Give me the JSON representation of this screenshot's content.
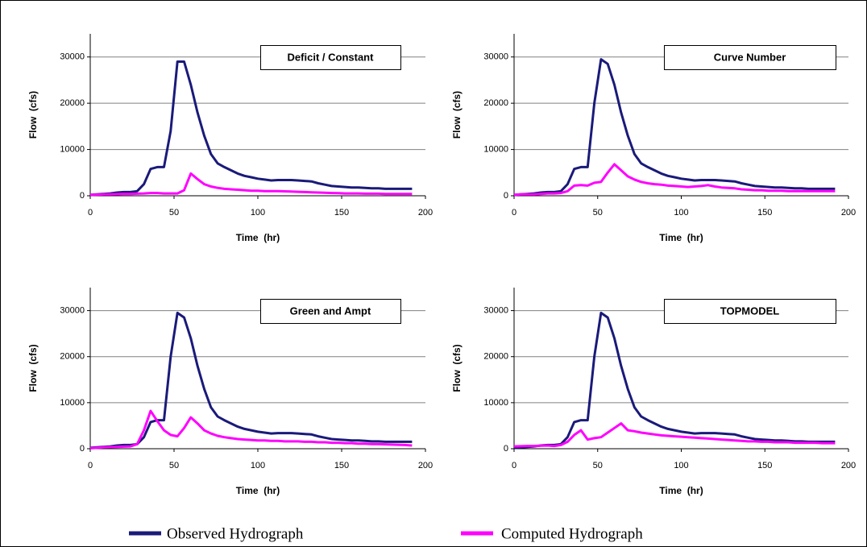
{
  "chart_data": [
    {
      "type": "line",
      "title": "Deficit / Constant",
      "xlabel": "Time  (hr)",
      "ylabel": "Flow  (cfs)",
      "x": [
        0,
        4,
        8,
        12,
        16,
        20,
        24,
        28,
        32,
        36,
        40,
        44,
        48,
        52,
        56,
        60,
        64,
        68,
        72,
        76,
        80,
        84,
        88,
        92,
        96,
        100,
        104,
        108,
        112,
        116,
        120,
        124,
        128,
        132,
        136,
        140,
        144,
        148,
        152,
        156,
        160,
        164,
        168,
        172,
        176,
        180,
        184,
        188,
        192
      ],
      "series": [
        {
          "name": "Observed Hydrograph",
          "color": "#1a1a7a",
          "values": [
            200,
            300,
            400,
            500,
            700,
            800,
            800,
            1000,
            2500,
            5800,
            6200,
            6200,
            14000,
            29000,
            29000,
            24000,
            18000,
            13000,
            9000,
            7000,
            6200,
            5500,
            4800,
            4300,
            4000,
            3700,
            3500,
            3300,
            3400,
            3400,
            3400,
            3300,
            3200,
            3100,
            2700,
            2400,
            2100,
            2000,
            1900,
            1800,
            1800,
            1700,
            1600,
            1600,
            1500,
            1500,
            1500,
            1500,
            1500
          ]
        },
        {
          "name": "Computed Hydrograph",
          "color": "#ff00ff",
          "values": [
            200,
            250,
            300,
            300,
            350,
            400,
            400,
            450,
            500,
            600,
            600,
            500,
            500,
            500,
            1200,
            4800,
            3600,
            2500,
            2000,
            1700,
            1500,
            1400,
            1300,
            1200,
            1100,
            1100,
            1000,
            1000,
            1000,
            950,
            900,
            850,
            800,
            750,
            700,
            650,
            600,
            550,
            500,
            500,
            500,
            450,
            450,
            450,
            400,
            400,
            400,
            400,
            400
          ]
        }
      ],
      "xlim": [
        0,
        200
      ],
      "xticks": [
        0,
        50,
        100,
        150,
        200
      ],
      "ylim": [
        0,
        35000
      ],
      "yticks": [
        0,
        10000,
        20000,
        30000
      ],
      "grid": true
    },
    {
      "type": "line",
      "title": "Curve Number",
      "xlabel": "Time  (hr)",
      "ylabel": "Flow  (cfs)",
      "x": [
        0,
        4,
        8,
        12,
        16,
        20,
        24,
        28,
        32,
        36,
        40,
        44,
        48,
        52,
        56,
        60,
        64,
        68,
        72,
        76,
        80,
        84,
        88,
        92,
        96,
        100,
        104,
        108,
        112,
        116,
        120,
        124,
        128,
        132,
        136,
        140,
        144,
        148,
        152,
        156,
        160,
        164,
        168,
        172,
        176,
        180,
        184,
        188,
        192
      ],
      "series": [
        {
          "color": "#1a1a7a",
          "values": [
            200,
            300,
            400,
            500,
            700,
            800,
            800,
            1000,
            2500,
            5800,
            6200,
            6200,
            20000,
            29500,
            28500,
            24000,
            18000,
            13000,
            9000,
            7000,
            6200,
            5500,
            4800,
            4300,
            4000,
            3700,
            3500,
            3300,
            3400,
            3400,
            3400,
            3300,
            3200,
            3100,
            2700,
            2400,
            2100,
            2000,
            1900,
            1800,
            1800,
            1700,
            1600,
            1600,
            1500,
            1500,
            1500,
            1500,
            1500
          ]
        },
        {
          "color": "#ff00ff",
          "values": [
            200,
            300,
            300,
            300,
            400,
            500,
            500,
            600,
            1000,
            2200,
            2300,
            2200,
            2800,
            3000,
            5000,
            6800,
            5500,
            4200,
            3500,
            3000,
            2700,
            2500,
            2400,
            2200,
            2100,
            2000,
            1900,
            2000,
            2100,
            2300,
            2000,
            1800,
            1700,
            1600,
            1400,
            1300,
            1200,
            1200,
            1100,
            1100,
            1100,
            1000,
            1000,
            1000,
            1000,
            1000,
            1000,
            1000,
            1000
          ]
        }
      ],
      "xlim": [
        0,
        200
      ],
      "xticks": [
        0,
        50,
        100,
        150,
        200
      ],
      "ylim": [
        0,
        35000
      ],
      "yticks": [
        0,
        10000,
        20000,
        30000
      ],
      "grid": true
    },
    {
      "type": "line",
      "title": "Green and Ampt",
      "xlabel": "Time  (hr)",
      "ylabel": "Flow  (cfs)",
      "x": [
        0,
        4,
        8,
        12,
        16,
        20,
        24,
        28,
        32,
        36,
        40,
        44,
        48,
        52,
        56,
        60,
        64,
        68,
        72,
        76,
        80,
        84,
        88,
        92,
        96,
        100,
        104,
        108,
        112,
        116,
        120,
        124,
        128,
        132,
        136,
        140,
        144,
        148,
        152,
        156,
        160,
        164,
        168,
        172,
        176,
        180,
        184,
        188,
        192
      ],
      "series": [
        {
          "color": "#1a1a7a",
          "values": [
            200,
            300,
            400,
            500,
            700,
            800,
            800,
            1000,
            2500,
            5800,
            6200,
            6200,
            20000,
            29500,
            28500,
            24000,
            18000,
            13000,
            9000,
            7000,
            6200,
            5500,
            4800,
            4300,
            4000,
            3700,
            3500,
            3300,
            3400,
            3400,
            3400,
            3300,
            3200,
            3100,
            2700,
            2400,
            2100,
            2000,
            1900,
            1800,
            1800,
            1700,
            1600,
            1600,
            1500,
            1500,
            1500,
            1500,
            1500
          ]
        },
        {
          "color": "#ff00ff",
          "values": [
            100,
            200,
            300,
            350,
            400,
            450,
            500,
            1000,
            4000,
            8200,
            6000,
            4000,
            3000,
            2700,
            4500,
            6800,
            5500,
            4000,
            3300,
            2800,
            2500,
            2300,
            2100,
            2000,
            1900,
            1800,
            1800,
            1700,
            1700,
            1600,
            1600,
            1600,
            1500,
            1500,
            1400,
            1400,
            1300,
            1300,
            1200,
            1200,
            1100,
            1100,
            1000,
            1000,
            950,
            900,
            850,
            800,
            700
          ]
        }
      ],
      "xlim": [
        0,
        200
      ],
      "xticks": [
        0,
        50,
        100,
        150,
        200
      ],
      "ylim": [
        0,
        35000
      ],
      "yticks": [
        0,
        10000,
        20000,
        30000
      ],
      "grid": true
    },
    {
      "type": "line",
      "title": "TOPMODEL",
      "xlabel": "Time  (hr)",
      "ylabel": "Flow  (cfs)",
      "x": [
        0,
        4,
        8,
        12,
        16,
        20,
        24,
        28,
        32,
        36,
        40,
        44,
        48,
        52,
        56,
        60,
        64,
        68,
        72,
        76,
        80,
        84,
        88,
        92,
        96,
        100,
        104,
        108,
        112,
        116,
        120,
        124,
        128,
        132,
        136,
        140,
        144,
        148,
        152,
        156,
        160,
        164,
        168,
        172,
        176,
        180,
        184,
        188,
        192
      ],
      "series": [
        {
          "color": "#1a1a7a",
          "values": [
            200,
            300,
            400,
            500,
            700,
            800,
            800,
            1000,
            2500,
            5800,
            6200,
            6200,
            20000,
            29500,
            28500,
            24000,
            18000,
            13000,
            9000,
            7000,
            6200,
            5500,
            4800,
            4300,
            4000,
            3700,
            3500,
            3300,
            3400,
            3400,
            3400,
            3300,
            3200,
            3100,
            2700,
            2400,
            2100,
            2000,
            1900,
            1800,
            1800,
            1700,
            1600,
            1600,
            1500,
            1500,
            1500,
            1500,
            1500
          ]
        },
        {
          "color": "#ff00ff",
          "values": [
            500,
            550,
            600,
            600,
            650,
            700,
            600,
            800,
            1500,
            3000,
            4000,
            2000,
            2300,
            2500,
            3500,
            4500,
            5500,
            4000,
            3800,
            3500,
            3300,
            3100,
            2900,
            2800,
            2700,
            2600,
            2500,
            2400,
            2300,
            2200,
            2100,
            2000,
            1900,
            1800,
            1700,
            1600,
            1600,
            1500,
            1500,
            1400,
            1400,
            1400,
            1300,
            1300,
            1300,
            1300,
            1200,
            1200,
            1200
          ]
        }
      ],
      "xlim": [
        0,
        200
      ],
      "xticks": [
        0,
        50,
        100,
        150,
        200
      ],
      "ylim": [
        0,
        35000
      ],
      "yticks": [
        0,
        10000,
        20000,
        30000
      ],
      "grid": true
    }
  ]
}
